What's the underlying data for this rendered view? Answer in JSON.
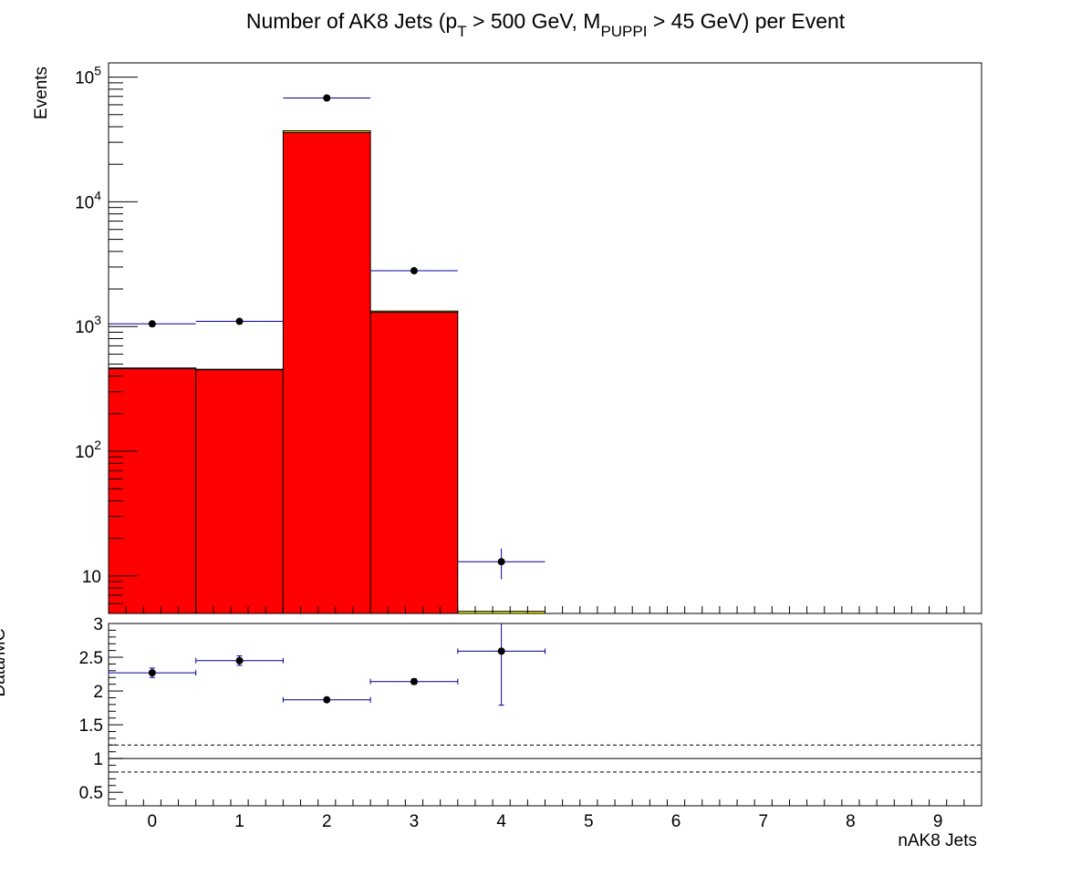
{
  "chart_data": [
    {
      "type": "bar",
      "title_parts": {
        "pre": "Number of AK8 Jets (p",
        "sub1": "T",
        "mid": " > 500 GeV, M",
        "sub2": "PUPPI",
        "post": " > 45 GeV) per Event"
      },
      "ylabel": "Events",
      "yscale": "log",
      "ylim": [
        5,
        130000
      ],
      "xlim": [
        -0.5,
        9.5
      ],
      "bins": [
        [
          -0.5,
          0.5
        ],
        [
          0.5,
          1.5
        ],
        [
          1.5,
          2.5
        ],
        [
          2.5,
          3.5
        ],
        [
          3.5,
          4.5
        ]
      ],
      "series": [
        {
          "kind": "stack",
          "color": "#ff0000",
          "values": [
            460,
            450,
            36000,
            1300,
            0
          ]
        },
        {
          "kind": "stack",
          "color": "#ffff00",
          "values": [
            5,
            4,
            1100,
            30,
            5.2
          ]
        },
        {
          "kind": "data",
          "color": "#000000",
          "error_color": "#000099",
          "x": [
            0,
            1,
            2,
            3,
            4
          ],
          "values": [
            1050,
            1100,
            68000,
            2800,
            13
          ],
          "errors": [
            32,
            33,
            260,
            53,
            3.6
          ]
        }
      ],
      "yticks": [
        {
          "value": 10,
          "label": "10"
        },
        {
          "value": 100,
          "label": "10",
          "exp": "2"
        },
        {
          "value": 1000,
          "label": "10",
          "exp": "3"
        },
        {
          "value": 10000,
          "label": "10",
          "exp": "4"
        },
        {
          "value": 100000,
          "label": "10",
          "exp": "5"
        }
      ]
    },
    {
      "type": "scatter",
      "ylabel": "Data/MC",
      "xlabel": "nAK8 Jets",
      "xlim": [
        -0.5,
        9.5
      ],
      "ylim": [
        0.3,
        3.0
      ],
      "x": [
        0,
        1,
        2,
        3,
        4
      ],
      "values": [
        2.27,
        2.45,
        1.87,
        2.14,
        2.59
      ],
      "errors": [
        0.07,
        0.07,
        0.02,
        0.04,
        0.8
      ],
      "reference_lines": [
        {
          "value": 1.0,
          "style": "solid"
        },
        {
          "value": 1.2,
          "style": "dashed"
        },
        {
          "value": 0.8,
          "style": "dashed"
        }
      ],
      "xticks": [
        "0",
        "1",
        "2",
        "3",
        "4",
        "5",
        "6",
        "7",
        "8",
        "9"
      ],
      "yticks": [
        "0.5",
        "1",
        "1.5",
        "2",
        "2.5",
        "3"
      ]
    }
  ]
}
